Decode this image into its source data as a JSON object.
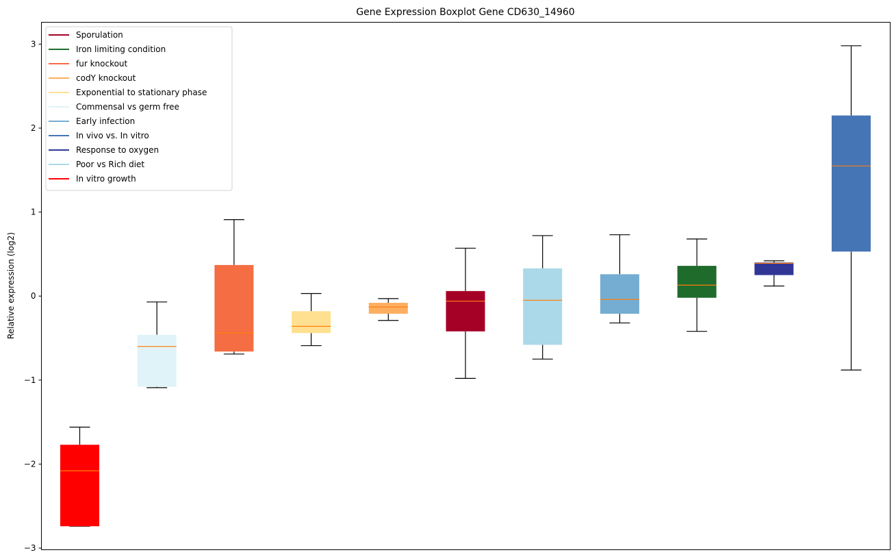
{
  "chart_data": {
    "type": "boxplot",
    "title": "Gene Expression Boxplot Gene CD630_14960",
    "xlabel": "",
    "ylabel": "Relative expression (log2)",
    "ylim": [
      -3.02,
      3.26
    ],
    "yticks": [
      3,
      2,
      1,
      0,
      -1,
      -2,
      -3
    ],
    "ytick_labels": [
      "3",
      "2",
      "1",
      "0",
      "−1",
      "−2",
      "−3"
    ],
    "grid": false,
    "legend_position": "top-left",
    "median_color": "#ff7f0e",
    "whisker_color": "#000000",
    "legend": [
      {
        "label": "Sporulation",
        "color": "#a50026"
      },
      {
        "label": "Iron limiting condition",
        "color": "#1f6b2c"
      },
      {
        "label": "fur knockout",
        "color": "#f46d43"
      },
      {
        "label": "codY knockout",
        "color": "#fdae61"
      },
      {
        "label": "Exponential to stationary phase",
        "color": "#fee090"
      },
      {
        "label": "Commensal vs germ free",
        "color": "#e0f3f8"
      },
      {
        "label": "Early infection",
        "color": "#74add1"
      },
      {
        "label": "In vivo vs. In vitro",
        "color": "#4575b4"
      },
      {
        "label": "Response to oxygen",
        "color": "#313695"
      },
      {
        "label": "Poor vs Rich diet",
        "color": "#abd9e9"
      },
      {
        "label": "In vitro growth",
        "color": "#ff0000"
      }
    ],
    "boxes": [
      {
        "group": "In vitro growth",
        "color": "#ff0000",
        "whisker_low": -2.74,
        "q1": -2.74,
        "median": -2.08,
        "q3": -1.77,
        "whisker_high": -1.56
      },
      {
        "group": "Commensal vs germ free",
        "color": "#e0f3f8",
        "whisker_low": -1.09,
        "q1": -1.08,
        "median": -0.6,
        "q3": -0.46,
        "whisker_high": -0.07
      },
      {
        "group": "fur knockout",
        "color": "#f46d43",
        "whisker_low": -0.69,
        "q1": -0.66,
        "median": -0.44,
        "q3": 0.37,
        "whisker_high": 0.91
      },
      {
        "group": "Exponential to stationary phase",
        "color": "#fee090",
        "whisker_low": -0.59,
        "q1": -0.44,
        "median": -0.36,
        "q3": -0.18,
        "whisker_high": 0.03
      },
      {
        "group": "codY knockout",
        "color": "#fdae61",
        "whisker_low": -0.29,
        "q1": -0.21,
        "median": -0.13,
        "q3": -0.08,
        "whisker_high": -0.03
      },
      {
        "group": "Sporulation",
        "color": "#a50026",
        "whisker_low": -0.98,
        "q1": -0.42,
        "median": -0.06,
        "q3": 0.06,
        "whisker_high": 0.57
      },
      {
        "group": "Poor vs Rich diet",
        "color": "#abd9e9",
        "whisker_low": -0.75,
        "q1": -0.58,
        "median": -0.05,
        "q3": 0.33,
        "whisker_high": 0.72
      },
      {
        "group": "Early infection",
        "color": "#74add1",
        "whisker_low": -0.32,
        "q1": -0.21,
        "median": -0.04,
        "q3": 0.26,
        "whisker_high": 0.73
      },
      {
        "group": "Iron limiting condition",
        "color": "#1f6b2c",
        "whisker_low": -0.42,
        "q1": -0.02,
        "median": 0.13,
        "q3": 0.36,
        "whisker_high": 0.68
      },
      {
        "group": "Response to oxygen",
        "color": "#313695",
        "whisker_low": 0.12,
        "q1": 0.25,
        "median": 0.39,
        "q3": 0.4,
        "whisker_high": 0.42
      },
      {
        "group": "In vivo vs. In vitro",
        "color": "#4575b4",
        "whisker_low": -0.88,
        "q1": 0.53,
        "median": 1.55,
        "q3": 2.15,
        "whisker_high": 2.98
      }
    ]
  }
}
